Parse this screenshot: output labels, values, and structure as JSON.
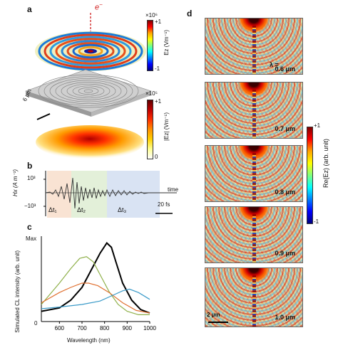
{
  "panel_a": {
    "label": "a",
    "electron_label": "e",
    "electron_sup": "−",
    "cbar_top": {
      "max": "+1",
      "min": "-1",
      "exponent": "×10⁶",
      "label": "Ez (Vm⁻¹)"
    },
    "cbar_bottom": {
      "max": "+1",
      "min": "0",
      "exponent": "×10⁵",
      "label": "|Ez| (Vm⁻¹)"
    },
    "scale": "6 μm"
  },
  "panel_b": {
    "label": "b",
    "ylabel": "Hx (A m⁻¹)",
    "ytick_top": "10³",
    "ytick_bottom": "−10³",
    "time_label": "time",
    "dt1": "Δt₁",
    "dt2": "Δt₂",
    "dt3": "Δt₃",
    "scale": "20 fs"
  },
  "panel_c": {
    "label": "c",
    "chart_data": {
      "type": "line",
      "xlabel": "Wavelength (nm)",
      "ylabel": "Simulated CL intensity (arb. unit)",
      "ytick_max": "Max",
      "ytick_min": "0",
      "xlim": [
        520,
        1000
      ],
      "ylim": [
        0,
        1
      ],
      "xticks": [
        600,
        700,
        800,
        900,
        1000
      ],
      "series": [
        {
          "color": "#000000",
          "x": [
            520,
            600,
            650,
            700,
            740,
            780,
            810,
            830,
            850,
            880,
            920,
            960,
            1000
          ],
          "y": [
            0.12,
            0.16,
            0.25,
            0.4,
            0.6,
            0.8,
            0.92,
            0.87,
            0.7,
            0.45,
            0.25,
            0.14,
            0.1
          ]
        },
        {
          "color": "#8fb04a",
          "x": [
            520,
            600,
            650,
            690,
            720,
            750,
            780,
            820,
            860,
            900,
            950,
            1000
          ],
          "y": [
            0.2,
            0.45,
            0.62,
            0.74,
            0.76,
            0.7,
            0.55,
            0.35,
            0.2,
            0.12,
            0.08,
            0.08
          ]
        },
        {
          "color": "#e07030",
          "x": [
            520,
            600,
            650,
            700,
            730,
            770,
            820,
            880,
            940,
            1000
          ],
          "y": [
            0.22,
            0.34,
            0.4,
            0.45,
            0.45,
            0.42,
            0.34,
            0.22,
            0.13,
            0.1
          ]
        },
        {
          "color": "#3a9ac8",
          "x": [
            520,
            600,
            700,
            780,
            830,
            880,
            910,
            950,
            1000
          ],
          "y": [
            0.15,
            0.17,
            0.2,
            0.24,
            0.3,
            0.36,
            0.38,
            0.34,
            0.26
          ]
        }
      ]
    }
  },
  "panel_d": {
    "label": "d",
    "lambda_prefix": "λ =",
    "wavelengths": [
      "0.6 μm",
      "0.7 μm",
      "0.8 μm",
      "0.9 μm",
      "1.0 μm"
    ],
    "cbar": {
      "max": "+1",
      "min": "-1",
      "label": "Re(Ez) (arb. unit)"
    },
    "scale": "2 μm"
  }
}
